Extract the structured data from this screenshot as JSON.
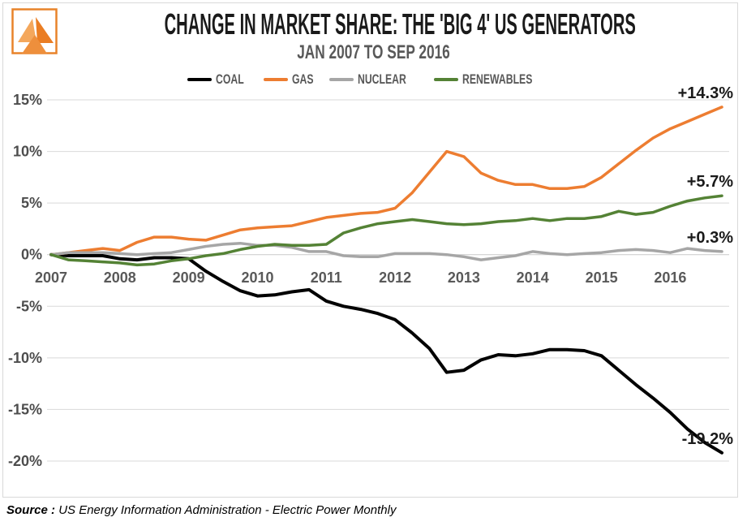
{
  "header": {
    "title": "CHANGE IN MARKET SHARE: THE 'BIG 4' US GENERATORS",
    "subtitle": "JAN 2007 TO SEP 2016"
  },
  "logo": {
    "description": "orange triangles mark",
    "border_color": "#e8832a",
    "colors": [
      "#f4a75c",
      "#ea7d23",
      "#ee8f3c"
    ]
  },
  "source": {
    "label": "Source :",
    "text": "US Energy Information Administration - Electric Power Monthly"
  },
  "chart_data": {
    "type": "line",
    "title": "CHANGE IN MARKET SHARE: THE 'BIG 4' US GENERATORS",
    "subtitle": "JAN 2007 TO SEP 2016",
    "xlabel": "",
    "ylabel": "",
    "grid": "horizontal",
    "legend_position": "top",
    "x_range": [
      2007,
      2016.75
    ],
    "y_range": [
      -20,
      15
    ],
    "y_ticks": [
      {
        "value": 15,
        "label": "15%"
      },
      {
        "value": 10,
        "label": "10%"
      },
      {
        "value": 5,
        "label": "5%"
      },
      {
        "value": 0,
        "label": "0%"
      },
      {
        "value": -5,
        "label": "-5%"
      },
      {
        "value": -10,
        "label": "-10%"
      },
      {
        "value": -15,
        "label": "-15%"
      },
      {
        "value": -20,
        "label": "-20%"
      }
    ],
    "x_ticks": [
      {
        "value": 2007,
        "label": "2007"
      },
      {
        "value": 2008,
        "label": "2008"
      },
      {
        "value": 2009,
        "label": "2009"
      },
      {
        "value": 2010,
        "label": "2010"
      },
      {
        "value": 2011,
        "label": "2011"
      },
      {
        "value": 2012,
        "label": "2012"
      },
      {
        "value": 2013,
        "label": "2013"
      },
      {
        "value": 2014,
        "label": "2014"
      },
      {
        "value": 2015,
        "label": "2015"
      },
      {
        "value": 2016,
        "label": "2016"
      }
    ],
    "x": [
      2007.0,
      2007.25,
      2007.5,
      2007.75,
      2008.0,
      2008.25,
      2008.5,
      2008.75,
      2009.0,
      2009.25,
      2009.5,
      2009.75,
      2010.0,
      2010.25,
      2010.5,
      2010.75,
      2011.0,
      2011.25,
      2011.5,
      2011.75,
      2012.0,
      2012.25,
      2012.5,
      2012.75,
      2013.0,
      2013.25,
      2013.5,
      2013.75,
      2014.0,
      2014.25,
      2014.5,
      2014.75,
      2015.0,
      2015.25,
      2015.5,
      2015.75,
      2016.0,
      2016.25,
      2016.5,
      2016.75
    ],
    "series": [
      {
        "name": "COAL",
        "color": "#000000",
        "end_label": "-19.2%",
        "end_value": -19.2,
        "values": [
          0,
          -0.1,
          -0.1,
          -0.1,
          -0.4,
          -0.5,
          -0.3,
          -0.3,
          -0.4,
          -1.6,
          -2.6,
          -3.5,
          -4.0,
          -3.9,
          -3.6,
          -3.4,
          -4.5,
          -5.0,
          -5.3,
          -5.7,
          -6.3,
          -7.6,
          -9.1,
          -11.4,
          -11.2,
          -10.2,
          -9.7,
          -9.8,
          -9.6,
          -9.2,
          -9.2,
          -9.3,
          -9.8,
          -11.2,
          -12.6,
          -13.9,
          -15.3,
          -16.9,
          -18.2,
          -19.2
        ]
      },
      {
        "name": "GAS",
        "color": "#ed7d31",
        "end_label": "+14.3%",
        "end_value": 14.3,
        "values": [
          0,
          0.2,
          0.4,
          0.6,
          0.4,
          1.2,
          1.7,
          1.7,
          1.5,
          1.4,
          1.9,
          2.4,
          2.6,
          2.7,
          2.8,
          3.2,
          3.6,
          3.8,
          4.0,
          4.1,
          4.5,
          6.0,
          8.0,
          10.0,
          9.5,
          7.9,
          7.2,
          6.8,
          6.8,
          6.4,
          6.4,
          6.6,
          7.5,
          8.8,
          10.1,
          11.3,
          12.2,
          12.9,
          13.6,
          14.3
        ]
      },
      {
        "name": "NUCLEAR",
        "color": "#a6a6a6",
        "end_label": "+0.3%",
        "end_value": 0.3,
        "values": [
          0,
          0.2,
          0.2,
          0.2,
          0.1,
          0.0,
          0.1,
          0.2,
          0.5,
          0.8,
          1.0,
          1.1,
          0.9,
          0.9,
          0.7,
          0.3,
          0.3,
          -0.1,
          -0.2,
          -0.2,
          0.1,
          0.1,
          0.1,
          0.0,
          -0.2,
          -0.5,
          -0.3,
          -0.1,
          0.3,
          0.1,
          0.0,
          0.1,
          0.2,
          0.4,
          0.5,
          0.4,
          0.2,
          0.6,
          0.4,
          0.3
        ]
      },
      {
        "name": "RENEWABLES",
        "color": "#548235",
        "end_label": "+5.7%",
        "end_value": 5.7,
        "values": [
          0,
          -0.5,
          -0.6,
          -0.7,
          -0.8,
          -1.0,
          -0.9,
          -0.6,
          -0.4,
          -0.1,
          0.1,
          0.5,
          0.8,
          1.0,
          0.9,
          0.9,
          1.0,
          2.1,
          2.6,
          3.0,
          3.2,
          3.4,
          3.2,
          3.0,
          2.9,
          3.0,
          3.2,
          3.3,
          3.5,
          3.3,
          3.5,
          3.5,
          3.7,
          4.2,
          3.9,
          4.1,
          4.7,
          5.2,
          5.5,
          5.7
        ]
      }
    ]
  }
}
